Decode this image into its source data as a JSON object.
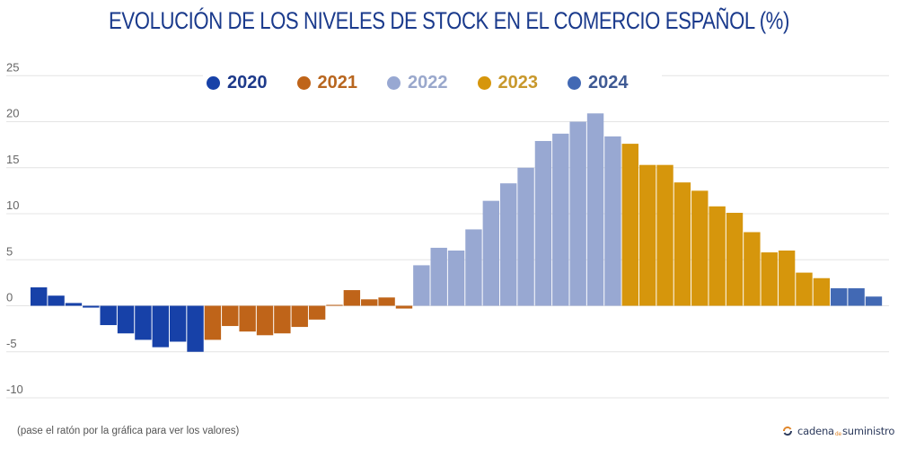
{
  "chart_data": {
    "type": "bar",
    "title": "EVOLUCIÓN DE LOS NIVELES DE STOCK EN EL COMERCIO ESPAÑOL (%)",
    "xlabel": "",
    "ylabel": "",
    "ylim": [
      -10,
      25
    ],
    "yticks": [
      25,
      20,
      15,
      10,
      5,
      0,
      -5,
      -10
    ],
    "ytick_labels": [
      "25",
      "20",
      "15",
      "10",
      "5",
      "0",
      "-5",
      "-10"
    ],
    "grid": true,
    "legend_position": "top-center",
    "series": [
      {
        "name": "2020",
        "color": "#1741a8",
        "label_color": "#1e3a8a",
        "values": [
          2.0,
          1.1,
          0.3,
          -0.2,
          -2.1,
          -3.0,
          -3.7,
          -4.5,
          -3.9,
          -5.0
        ]
      },
      {
        "name": "2021",
        "color": "#bf6419",
        "label_color": "#b8661f",
        "values": [
          -3.7,
          -2.2,
          -2.8,
          -3.2,
          -3.0,
          -2.3,
          -1.5,
          0.1,
          1.7,
          0.7,
          0.9,
          -0.3
        ]
      },
      {
        "name": "2022",
        "color": "#98a8d2",
        "label_color": "#9aa8cc",
        "values": [
          4.4,
          6.3,
          6.0,
          8.3,
          11.4,
          13.3,
          15.0,
          17.9,
          18.7,
          20.0,
          20.9,
          18.4
        ]
      },
      {
        "name": "2023",
        "color": "#d6960c",
        "label_color": "#c8982c",
        "values": [
          17.6,
          15.3,
          15.3,
          13.4,
          12.5,
          10.8,
          10.1,
          8.0,
          5.8,
          6.0,
          3.6,
          3.0
        ]
      },
      {
        "name": "2024",
        "color": "#4269b4",
        "label_color": "#3f5a94",
        "values": [
          1.9,
          1.9,
          1.0
        ]
      }
    ]
  },
  "legend": {
    "items": [
      {
        "label": "2020"
      },
      {
        "label": "2021"
      },
      {
        "label": "2022"
      },
      {
        "label": "2023"
      },
      {
        "label": "2024"
      }
    ]
  },
  "footnote": "(pase el ratón por la gráfica para ver los valores)",
  "logo": {
    "icon": "circular-arrows-icon",
    "text_main": "cadena",
    "text_small": "de",
    "text_end": "suministro"
  },
  "colors": {
    "title": "#1a3a8c",
    "gridline": "#e4e4e4",
    "tick_label": "#666666"
  }
}
